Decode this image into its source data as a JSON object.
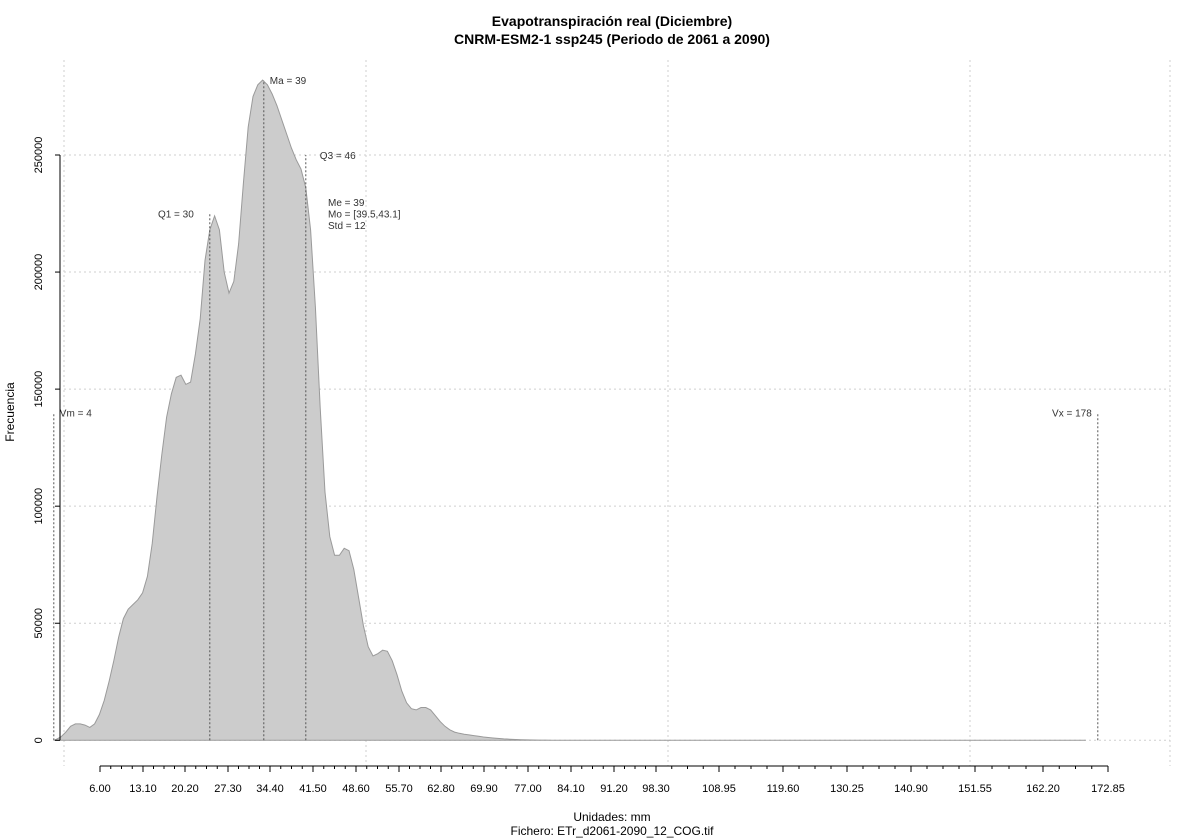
{
  "chart_data": {
    "type": "area",
    "title": "Evapotranspiración real (Diciembre)",
    "subtitle": "CNRM-ESM2-1 ssp245 (Periodo de 2061 a 2090)",
    "xlabel": "Unidades: mm",
    "caption": "Fichero: ETr_d2061-2090_12_COG.tif",
    "ylabel": "Frecuencia",
    "xlim": [
      2,
      178
    ],
    "ylim": [
      -5000,
      290000
    ],
    "x_ticks": [
      "6.00",
      "13.10",
      "20.20",
      "27.30",
      "34.40",
      "41.50",
      "48.60",
      "55.70",
      "62.80",
      "69.90",
      "77.00",
      "84.10",
      "91.20",
      "98.30",
      "108.95",
      "119.60",
      "130.25",
      "140.90",
      "151.55",
      "162.20",
      "172.85"
    ],
    "y_ticks": [
      "0",
      "50000",
      "100000",
      "150000",
      "200000",
      "250000"
    ],
    "grid": true,
    "density": {
      "x": [
        4.0,
        4.5,
        5.2,
        6.0,
        6.8,
        7.6,
        8.4,
        9.2,
        10.0,
        10.8,
        11.6,
        12.4,
        13.2,
        14.0,
        14.8,
        15.6,
        16.4,
        17.2,
        18.0,
        18.8,
        19.6,
        20.4,
        21.2,
        22.0,
        22.8,
        23.6,
        24.4,
        25.2,
        26.0,
        26.8,
        27.6,
        28.4,
        29.2,
        30.0,
        30.8,
        31.6,
        32.4,
        33.2,
        34.0,
        34.8,
        35.6,
        36.4,
        37.2,
        38.0,
        38.8,
        39.6,
        40.4,
        41.2,
        42.0,
        42.8,
        43.6,
        44.4,
        45.2,
        46.0,
        46.8,
        47.6,
        48.4,
        49.2,
        50.0,
        50.8,
        51.6,
        52.4,
        53.2,
        54.0,
        54.8,
        55.6,
        56.4,
        57.2,
        58.0,
        58.8,
        59.6,
        60.4,
        61.2,
        62.0,
        62.8,
        63.6,
        64.4,
        65.2,
        66.0,
        66.8,
        67.6,
        68.4,
        69.2,
        70.0,
        70.8,
        71.6,
        72.4,
        73.2,
        74.0,
        74.8,
        75.6,
        76.4,
        77.2,
        78.0,
        79.0,
        80.0,
        81.0,
        82.0,
        83.0,
        84.0,
        85.0,
        86.0,
        87.0,
        88.0,
        89.0,
        90.0,
        92.0,
        94.0,
        96.0,
        98.0,
        101.0,
        105.0,
        110.0,
        120.0,
        130.0,
        140.0,
        150.0,
        160.0,
        170.0,
        176.0
      ],
      "y": [
        0,
        500,
        1500,
        3500,
        6000,
        7000,
        7000,
        6500,
        5500,
        7000,
        11000,
        17000,
        25000,
        34000,
        44000,
        52000,
        56000,
        58000,
        60000,
        63000,
        70000,
        84000,
        104000,
        122000,
        138000,
        148000,
        155000,
        156000,
        152000,
        153000,
        165000,
        180000,
        205000,
        218000,
        224000,
        218000,
        200000,
        191000,
        196000,
        212000,
        238000,
        262000,
        275000,
        280000,
        282000,
        280000,
        276000,
        271000,
        265000,
        259000,
        253000,
        248000,
        244000,
        236000,
        218000,
        185000,
        142000,
        106000,
        87000,
        79000,
        79000,
        82000,
        81000,
        73000,
        61000,
        49000,
        40000,
        36000,
        37000,
        38500,
        38000,
        34000,
        28000,
        21000,
        16000,
        13500,
        13000,
        14000,
        14000,
        13000,
        10500,
        8000,
        6000,
        4500,
        3500,
        3000,
        2600,
        2300,
        2000,
        1700,
        1400,
        1200,
        1000,
        800,
        600,
        450,
        350,
        250,
        180,
        130,
        100,
        80,
        60,
        50,
        40,
        30,
        25,
        20,
        15,
        10,
        8,
        5,
        4,
        3,
        2,
        1,
        0,
        0,
        0,
        0
      ]
    },
    "markers": [
      {
        "label": "Vm = 4",
        "x": 4,
        "y": 140000
      },
      {
        "label": "Q1 = 30",
        "x": 30,
        "y": 225000
      },
      {
        "label": "Ma = 39",
        "x": 39,
        "y": 282000
      },
      {
        "label": "Q3 = 46",
        "x": 46,
        "y": 250000
      },
      {
        "label": "Vx = 178",
        "x": 178,
        "y": 140000
      }
    ],
    "stats": [
      "Me = 39",
      "Mo = [39.5,43.1]",
      "Std = 12"
    ]
  }
}
